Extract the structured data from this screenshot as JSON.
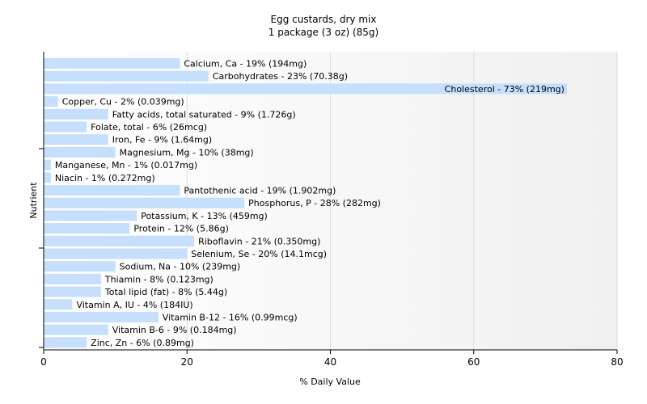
{
  "chart_data": {
    "type": "bar",
    "orientation": "horizontal",
    "title": "Egg custards, dry mix",
    "subtitle": "1 package (3 oz) (85g)",
    "xlabel": "% Daily Value",
    "ylabel": "Nutrient",
    "xlim": [
      0,
      80
    ],
    "xticks": [
      0,
      20,
      40,
      60,
      80
    ],
    "grid": true,
    "bar_color": "#c6dffc",
    "categories": [
      "Calcium, Ca",
      "Carbohydrates",
      "Cholesterol",
      "Copper, Cu",
      "Fatty acids, total saturated",
      "Folate, total",
      "Iron, Fe",
      "Magnesium, Mg",
      "Manganese, Mn",
      "Niacin",
      "Pantothenic acid",
      "Phosphorus, P",
      "Potassium, K",
      "Protein",
      "Riboflavin",
      "Selenium, Se",
      "Sodium, Na",
      "Thiamin",
      "Total lipid (fat)",
      "Vitamin A, IU",
      "Vitamin B-12",
      "Vitamin B-6",
      "Zinc, Zn"
    ],
    "values": [
      19,
      23,
      73,
      2,
      9,
      6,
      9,
      10,
      1,
      1,
      19,
      28,
      13,
      12,
      21,
      20,
      10,
      8,
      8,
      4,
      16,
      9,
      6
    ],
    "labels": [
      "Calcium, Ca - 19% (194mg)",
      "Carbohydrates - 23% (70.38g)",
      "Cholesterol - 73% (219mg)",
      "Copper, Cu - 2% (0.039mg)",
      "Fatty acids, total saturated - 9% (1.726g)",
      "Folate, total - 6% (26mcg)",
      "Iron, Fe - 9% (1.64mg)",
      "Magnesium, Mg - 10% (38mg)",
      "Manganese, Mn - 1% (0.017mg)",
      "Niacin - 1% (0.272mg)",
      "Pantothenic acid - 19% (1.902mg)",
      "Phosphorus, P - 28% (282mg)",
      "Potassium, K - 13% (459mg)",
      "Protein - 12% (5.86g)",
      "Riboflavin - 21% (0.350mg)",
      "Selenium, Se - 20% (14.1mcg)",
      "Sodium, Na - 10% (239mg)",
      "Thiamin - 8% (0.123mg)",
      "Total lipid (fat) - 8% (5.44g)",
      "Vitamin A, IU - 4% (184IU)",
      "Vitamin B-12 - 16% (0.99mcg)",
      "Vitamin B-6 - 9% (0.184mg)",
      "Zinc, Zn - 6% (0.89mg)"
    ]
  }
}
